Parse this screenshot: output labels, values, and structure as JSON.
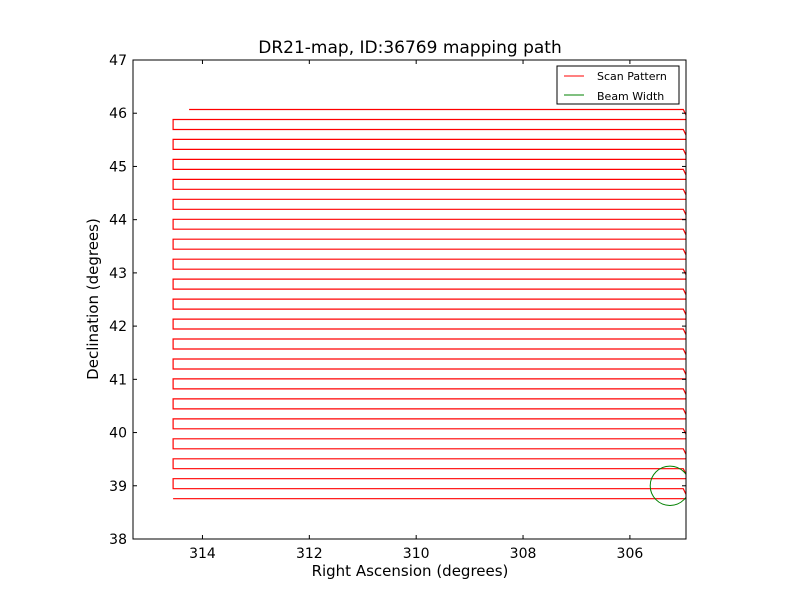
{
  "chart_data": {
    "type": "line",
    "title": "DR21-map, ID:36769 mapping path",
    "xlabel": "Right Ascension (degrees)",
    "ylabel": "Declination (degrees)",
    "xlim": [
      315.3,
      304.95
    ],
    "ylim": [
      38,
      47
    ],
    "x_inverted": true,
    "xticks": [
      314,
      312,
      310,
      308,
      306
    ],
    "yticks": [
      38,
      39,
      40,
      41,
      42,
      43,
      44,
      45,
      46,
      47
    ],
    "grid": false,
    "legend_position": "top-right",
    "series": [
      {
        "name": "Scan Pattern",
        "color": "#ff0000",
        "x_east": 314.55,
        "x_west": 305.0,
        "x_start": 314.25,
        "dec_start": 46.07,
        "dec_end": 38.56,
        "dec_step": 0.375,
        "shift": 0.09
      },
      {
        "name": "Beam Width",
        "color": "#008000",
        "center": [
          305.25,
          39.0
        ],
        "radius": 0.37
      }
    ]
  }
}
